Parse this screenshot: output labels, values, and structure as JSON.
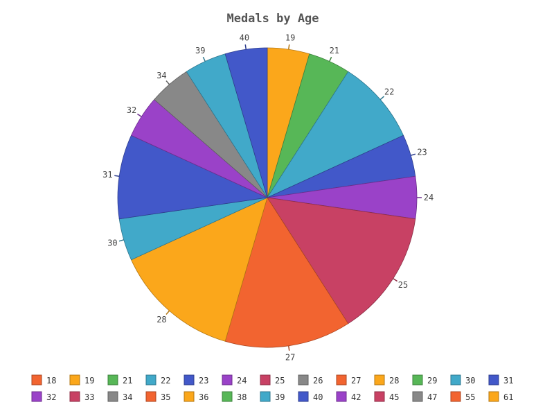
{
  "chart_data": {
    "type": "pie",
    "title": "Medals by Age",
    "start_angle_deg": 0,
    "direction": "clockwise",
    "slices": [
      {
        "label": "19",
        "value": 1,
        "color": "#fba71b"
      },
      {
        "label": "21",
        "value": 1,
        "color": "#57b757"
      },
      {
        "label": "22",
        "value": 2,
        "color": "#41a9c9"
      },
      {
        "label": "23",
        "value": 1,
        "color": "#4258c9"
      },
      {
        "label": "24",
        "value": 1,
        "color": "#9a42c8"
      },
      {
        "label": "25",
        "value": 3,
        "color": "#c84164"
      },
      {
        "label": "27",
        "value": 3,
        "color": "#f26430"
      },
      {
        "label": "28",
        "value": 3,
        "color": "#fba71b"
      },
      {
        "label": "30",
        "value": 1,
        "color": "#41a9c9"
      },
      {
        "label": "31",
        "value": 2,
        "color": "#4258c9"
      },
      {
        "label": "32",
        "value": 1,
        "color": "#9a42c8"
      },
      {
        "label": "34",
        "value": 1,
        "color": "#888888"
      },
      {
        "label": "39",
        "value": 1,
        "color": "#41a9c9"
      },
      {
        "label": "40",
        "value": 1,
        "color": "#4258c9"
      }
    ],
    "legend_position": "bottom",
    "legend": [
      {
        "label": "18",
        "color": "#f26430"
      },
      {
        "label": "19",
        "color": "#fba71b"
      },
      {
        "label": "21",
        "color": "#57b757"
      },
      {
        "label": "22",
        "color": "#41a9c9"
      },
      {
        "label": "23",
        "color": "#4258c9"
      },
      {
        "label": "24",
        "color": "#9a42c8"
      },
      {
        "label": "25",
        "color": "#c84164"
      },
      {
        "label": "26",
        "color": "#888888"
      },
      {
        "label": "27",
        "color": "#f26430"
      },
      {
        "label": "28",
        "color": "#fba71b"
      },
      {
        "label": "29",
        "color": "#57b757"
      },
      {
        "label": "30",
        "color": "#41a9c9"
      },
      {
        "label": "31",
        "color": "#4258c9"
      },
      {
        "label": "32",
        "color": "#9a42c8"
      },
      {
        "label": "33",
        "color": "#c84164"
      },
      {
        "label": "34",
        "color": "#888888"
      },
      {
        "label": "35",
        "color": "#f26430"
      },
      {
        "label": "36",
        "color": "#fba71b"
      },
      {
        "label": "38",
        "color": "#57b757"
      },
      {
        "label": "39",
        "color": "#41a9c9"
      },
      {
        "label": "40",
        "color": "#4258c9"
      },
      {
        "label": "42",
        "color": "#9a42c8"
      },
      {
        "label": "45",
        "color": "#c84164"
      },
      {
        "label": "47",
        "color": "#888888"
      },
      {
        "label": "55",
        "color": "#f26430"
      },
      {
        "label": "61",
        "color": "#fba71b"
      }
    ]
  }
}
